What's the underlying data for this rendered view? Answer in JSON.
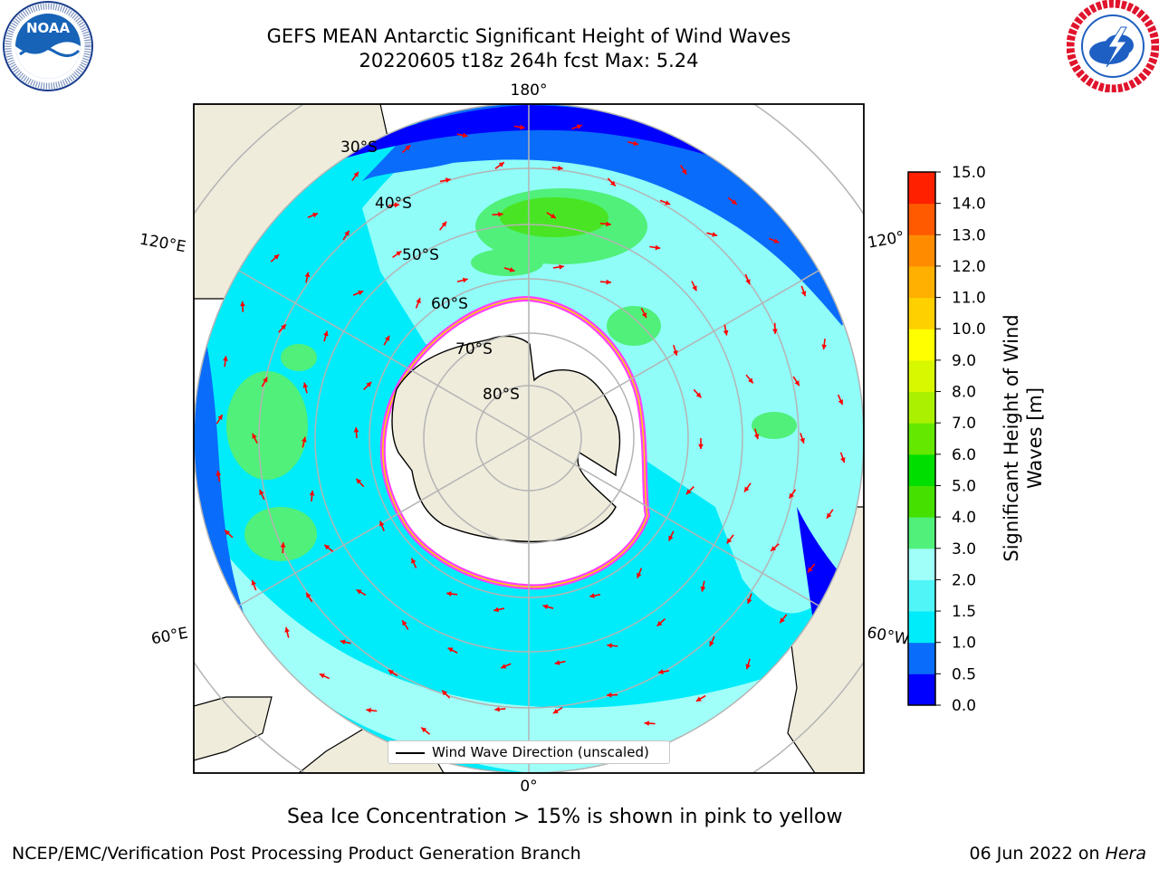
{
  "header": {
    "title_line1": "GEFS MEAN Antarctic Significant Height of Wind Waves",
    "title_line2": "20220605 t18z 264h fcst   Max: 5.24"
  },
  "logos": {
    "left": {
      "text": "NOAA",
      "ring_text": "NATIONAL OCEANIC AND ATMOSPHERIC ADMINISTRATION · U.S. DEPARTMENT OF COMMERCE"
    },
    "right": {
      "ring_text": "NATIONAL WEATHER SERVICE"
    }
  },
  "map": {
    "longitude_labels": {
      "top": "180°",
      "bottom": "0°",
      "upper_left": "120°E",
      "lower_left": "60°E",
      "upper_right": "120°",
      "lower_right": "60°W"
    },
    "latitude_labels": [
      "30°S",
      "40°S",
      "50°S",
      "60°S",
      "70°S",
      "80°S"
    ],
    "colors": {
      "land": "#efecdc",
      "sea_ice": "#ffffff",
      "arrow": "#ff0000",
      "grid": "#b4b4b4"
    },
    "legend_label": "Wind Wave Direction (unscaled)"
  },
  "colorbar": {
    "label": "Significant Height of Wind Waves [m]",
    "label_line1": "Significant Height of Wind",
    "label_line2": "Waves [m]",
    "ticks": [
      "0.0",
      "0.5",
      "1.0",
      "1.5",
      "2.0",
      "3.0",
      "4.0",
      "5.0",
      "6.0",
      "7.0",
      "8.0",
      "9.0",
      "10.0",
      "11.0",
      "12.0",
      "13.0",
      "14.0",
      "15.0"
    ],
    "colors": [
      "#0000ff",
      "#0a6cfa",
      "#00ecfa",
      "#50f5f8",
      "#a0fff8",
      "#50f07a",
      "#46e000",
      "#00de00",
      "#64e800",
      "#aaf000",
      "#d8f800",
      "#ffff00",
      "#ffd000",
      "#ffb000",
      "#ff8c00",
      "#ff5a00",
      "#ff2000"
    ]
  },
  "footer": {
    "note": "Sea Ice Concentration > 15% is shown in pink to yellow",
    "left": "NCEP/EMC/Verification Post Processing Product Generation Branch",
    "right_date": "06 Jun 2022 on ",
    "right_machine": "Hera"
  }
}
